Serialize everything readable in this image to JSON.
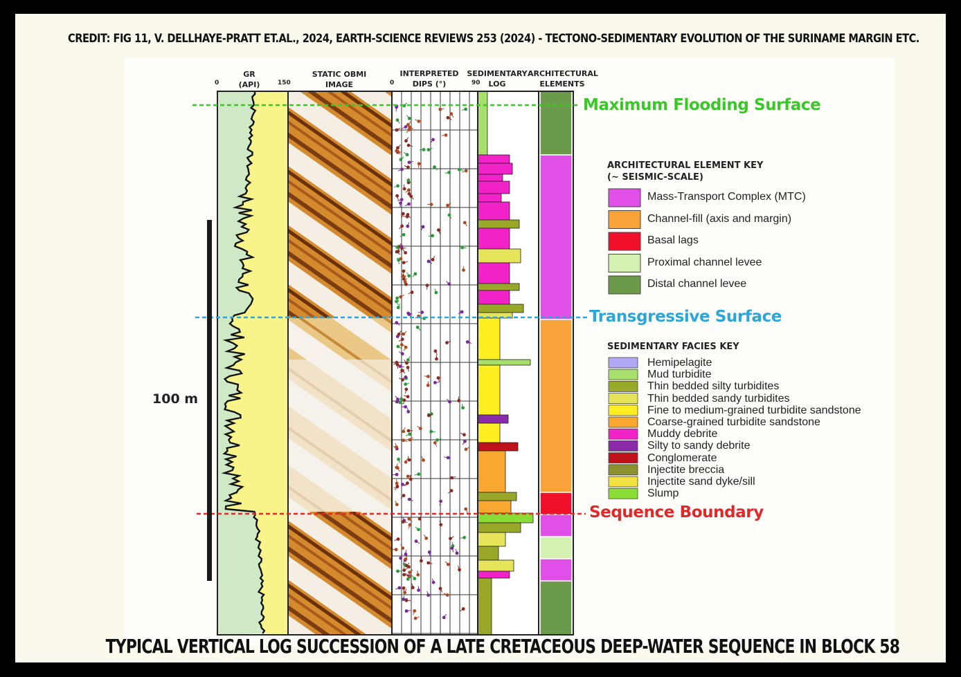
{
  "credit": "CREDIT: FIG 11, V. DELLHAYE-PRATT ET.AL., 2024, EARTH-SCIENCE REVIEWS 253 (2024) - TECTONO-SEDIMENTARY EVOLUTION OF THE SURINAME MARGIN ETC.",
  "title": "TYPICAL VERTICAL LOG SUCCESSION OF A LATE CRETACEOUS DEEP-WATER SEQUENCE IN BLOCK 58",
  "columns": {
    "gr": "GR",
    "gr_unit": "(API)",
    "gr_min": "0",
    "gr_max": "150",
    "image": "STATIC OBMI",
    "image2": "IMAGE",
    "dips": "INTERPRETED",
    "dips2": "DIPS (°)",
    "dips_min": "0",
    "dips_max": "90",
    "sed": "SEDIMENTARY",
    "sed2": "LOG",
    "arch": "ARCHITECTURAL",
    "arch2": "ELEMENTS"
  },
  "surfaces": {
    "mfs": "Maximum Flooding Surface",
    "ts": "Transgressive Surface",
    "sb": "Sequence Boundary"
  },
  "scale": "100 m",
  "arch_key": {
    "title": "ARCHITECTURAL ELEMENT KEY",
    "subtitle": "(~ SEISMIC-SCALE)",
    "items": [
      {
        "label": "Mass-Transport Complex (MTC)",
        "color": "#e050e8"
      },
      {
        "label": "Channel-fill (axis and margin)",
        "color": "#f7a33a"
      },
      {
        "label": "Basal lags",
        "color": "#f0102a"
      },
      {
        "label": "Proximal channel levee",
        "color": "#d3f2b2"
      },
      {
        "label": "Distal channel levee",
        "color": "#6b9a4a"
      }
    ]
  },
  "facies_key": {
    "title": "SEDIMENTARY FACIES KEY",
    "items": [
      {
        "label": "Hemipelagite",
        "color": "#b0a8f4"
      },
      {
        "label": "Mud turbidite",
        "color": "#a6e06a"
      },
      {
        "label": "Thin bedded silty turbidites",
        "color": "#9aa82a"
      },
      {
        "label": "Thin bedded sandy turbidites",
        "color": "#e6e45a"
      },
      {
        "label": "Fine to medium-grained turbidite sandstone",
        "color": "#ffee22"
      },
      {
        "label": "Coarse-grained turbidite sandstone",
        "color": "#f8a830"
      },
      {
        "label": "Muddy debrite",
        "color": "#f022c8"
      },
      {
        "label": "Silty to sandy debrite",
        "color": "#8a2aa8"
      },
      {
        "label": "Conglomerate",
        "color": "#c0121a"
      },
      {
        "label": "Injectite breccia",
        "color": "#8a9230"
      },
      {
        "label": "Injectite sand dyke/sill",
        "color": "#f2e040"
      },
      {
        "label": "Slump",
        "color": "#8adc36"
      }
    ]
  },
  "colors": {
    "mfs": "#38c828",
    "ts": "#2aa6d8",
    "sb": "#e02828",
    "gr_fill_left": "#cfe8c6",
    "gr_fill_right": "#f8f48a"
  }
}
